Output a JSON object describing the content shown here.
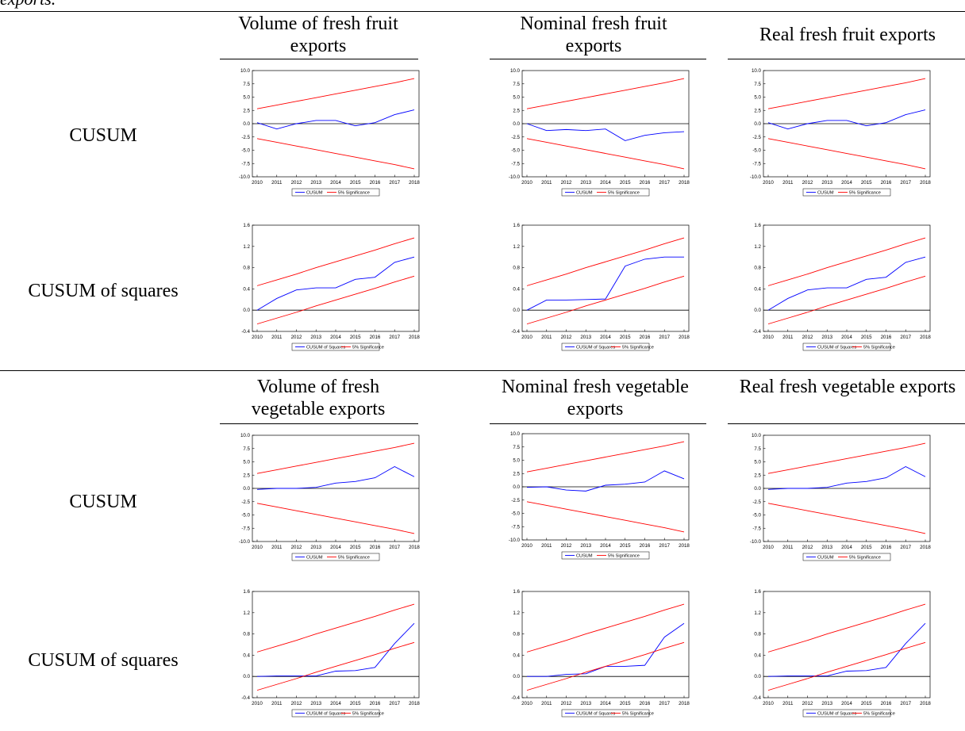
{
  "caption_tail": "exports.",
  "sections": [
    {
      "headers": [
        "Volume of fresh fruit exports",
        "Nominal fresh fruit exports",
        "Real fresh fruit exports"
      ],
      "row_labels": [
        "CUSUM",
        "CUSUM of squares"
      ]
    },
    {
      "headers": [
        "Volume of fresh vegetable exports",
        "Nominal fresh vegetable exports",
        "Real fresh vegetable exports"
      ],
      "row_labels": [
        "CUSUM",
        "CUSUM of squares"
      ]
    }
  ],
  "colors": {
    "statistic": "#0000ff",
    "bounds": "#ff0000",
    "axis": "#000000"
  },
  "chart_data": [
    {
      "id": "s0r0c0",
      "type": "line",
      "panel": "Volume of fresh fruit exports / CUSUM",
      "x": [
        2010,
        2011,
        2012,
        2013,
        2014,
        2015,
        2016,
        2017,
        2018
      ],
      "ylim": [
        -10,
        10
      ],
      "yticks": [
        "10.0",
        "7.5",
        "5.0",
        "2.5",
        "0.0",
        "-2.5",
        "-5.0",
        "-7.5",
        "-10.0"
      ],
      "series": [
        {
          "name": "CUSUM",
          "values": [
            0.2,
            -1.0,
            0.0,
            0.6,
            0.6,
            -0.4,
            0.2,
            1.7,
            2.6
          ]
        },
        {
          "name": "5% Significance",
          "values": [
            2.8,
            3.5,
            4.2,
            4.9,
            5.6,
            6.3,
            7.0,
            7.7,
            8.5
          ]
        },
        {
          "name": "5% Significance",
          "values": [
            -2.8,
            -3.5,
            -4.2,
            -4.9,
            -5.6,
            -6.3,
            -7.0,
            -7.7,
            -8.5
          ]
        }
      ]
    },
    {
      "id": "s0r0c1",
      "type": "line",
      "panel": "Nominal fresh fruit exports / CUSUM",
      "x": [
        2010,
        2011,
        2012,
        2013,
        2014,
        2015,
        2016,
        2017,
        2018
      ],
      "ylim": [
        -10,
        10
      ],
      "yticks": [
        "10.0",
        "7.5",
        "5.0",
        "2.5",
        "0.0",
        "-2.5",
        "-5.0",
        "-7.5",
        "-10.0"
      ],
      "series": [
        {
          "name": "CUSUM",
          "values": [
            0.0,
            -1.3,
            -1.1,
            -1.3,
            -1.0,
            -3.2,
            -2.2,
            -1.7,
            -1.5
          ]
        },
        {
          "name": "5% Significance",
          "values": [
            2.8,
            3.5,
            4.2,
            4.9,
            5.6,
            6.3,
            7.0,
            7.7,
            8.5
          ]
        },
        {
          "name": "5% Significance",
          "values": [
            -2.8,
            -3.5,
            -4.2,
            -4.9,
            -5.6,
            -6.3,
            -7.0,
            -7.7,
            -8.5
          ]
        }
      ]
    },
    {
      "id": "s0r0c2",
      "type": "line",
      "panel": "Real fresh fruit exports / CUSUM",
      "x": [
        2010,
        2011,
        2012,
        2013,
        2014,
        2015,
        2016,
        2017,
        2018
      ],
      "ylim": [
        -10,
        10
      ],
      "yticks": [
        "10.0",
        "7.5",
        "5.0",
        "2.5",
        "0.0",
        "-2.5",
        "-5.0",
        "-7.5",
        "-10.0"
      ],
      "series": [
        {
          "name": "CUSUM",
          "values": [
            0.2,
            -1.0,
            0.0,
            0.6,
            0.6,
            -0.4,
            0.2,
            1.7,
            2.6
          ]
        },
        {
          "name": "5% Significance",
          "values": [
            2.8,
            3.5,
            4.2,
            4.9,
            5.6,
            6.3,
            7.0,
            7.7,
            8.5
          ]
        },
        {
          "name": "5% Significance",
          "values": [
            -2.8,
            -3.5,
            -4.2,
            -4.9,
            -5.6,
            -6.3,
            -7.0,
            -7.7,
            -8.5
          ]
        }
      ]
    },
    {
      "id": "s0r1c0",
      "type": "line",
      "panel": "Volume of fresh fruit exports / CUSUM of squares",
      "x": [
        2010,
        2011,
        2012,
        2013,
        2014,
        2015,
        2016,
        2017,
        2018
      ],
      "ylim": [
        -0.4,
        1.6
      ],
      "yticks": [
        "1.6",
        "1.2",
        "0.8",
        "0.4",
        "0.0",
        "-0.4"
      ],
      "series": [
        {
          "name": "CUSUM of Squares",
          "values": [
            0.0,
            0.22,
            0.38,
            0.42,
            0.42,
            0.58,
            0.62,
            0.9,
            1.0
          ]
        },
        {
          "name": "5% Significance",
          "values": [
            0.46,
            0.57,
            0.68,
            0.8,
            0.91,
            1.02,
            1.13,
            1.25,
            1.36
          ]
        },
        {
          "name": "5% Significance",
          "values": [
            -0.26,
            -0.15,
            -0.04,
            0.08,
            0.19,
            0.3,
            0.41,
            0.53,
            0.64
          ]
        }
      ]
    },
    {
      "id": "s0r1c1",
      "type": "line",
      "panel": "Nominal fresh fruit exports / CUSUM of squares",
      "x": [
        2010,
        2011,
        2012,
        2013,
        2014,
        2015,
        2016,
        2017,
        2018
      ],
      "ylim": [
        -0.4,
        1.6
      ],
      "yticks": [
        "1.6",
        "1.2",
        "0.8",
        "0.4",
        "0.0",
        "-0.4"
      ],
      "series": [
        {
          "name": "CUSUM of Squares",
          "values": [
            0.0,
            0.19,
            0.19,
            0.2,
            0.21,
            0.83,
            0.96,
            1.0,
            1.0
          ]
        },
        {
          "name": "5% Significance",
          "values": [
            0.46,
            0.57,
            0.68,
            0.8,
            0.91,
            1.02,
            1.13,
            1.25,
            1.36
          ]
        },
        {
          "name": "5% Significance",
          "values": [
            -0.26,
            -0.15,
            -0.04,
            0.08,
            0.19,
            0.3,
            0.41,
            0.53,
            0.64
          ]
        }
      ]
    },
    {
      "id": "s0r1c2",
      "type": "line",
      "panel": "Real fresh fruit exports / CUSUM of squares",
      "x": [
        2010,
        2011,
        2012,
        2013,
        2014,
        2015,
        2016,
        2017,
        2018
      ],
      "ylim": [
        -0.4,
        1.6
      ],
      "yticks": [
        "1.6",
        "1.2",
        "0.8",
        "0.4",
        "0.0",
        "-0.4"
      ],
      "series": [
        {
          "name": "CUSUM of Squares",
          "values": [
            0.0,
            0.22,
            0.38,
            0.42,
            0.42,
            0.58,
            0.62,
            0.9,
            1.0
          ]
        },
        {
          "name": "5% Significance",
          "values": [
            0.46,
            0.57,
            0.68,
            0.8,
            0.91,
            1.02,
            1.13,
            1.25,
            1.36
          ]
        },
        {
          "name": "5% Significance",
          "values": [
            -0.26,
            -0.15,
            -0.04,
            0.08,
            0.19,
            0.3,
            0.41,
            0.53,
            0.64
          ]
        }
      ]
    },
    {
      "id": "s1r0c0",
      "type": "line",
      "panel": "Volume of fresh vegetable exports / CUSUM",
      "x": [
        2010,
        2011,
        2012,
        2013,
        2014,
        2015,
        2016,
        2017,
        2018
      ],
      "ylim": [
        -10,
        10
      ],
      "yticks": [
        "10.0",
        "7.5",
        "5.0",
        "2.5",
        "0.0",
        "-2.5",
        "-5.0",
        "-7.5",
        "-10.0"
      ],
      "series": [
        {
          "name": "CUSUM",
          "values": [
            -0.2,
            0.0,
            0.0,
            0.2,
            1.0,
            1.3,
            2.0,
            4.1,
            2.2
          ]
        },
        {
          "name": "5% Significance",
          "values": [
            2.8,
            3.5,
            4.2,
            4.9,
            5.6,
            6.3,
            7.0,
            7.7,
            8.5
          ]
        },
        {
          "name": "5% Significance",
          "values": [
            -2.8,
            -3.5,
            -4.2,
            -4.9,
            -5.6,
            -6.3,
            -7.0,
            -7.7,
            -8.5
          ]
        }
      ]
    },
    {
      "id": "s1r0c1",
      "type": "line",
      "panel": "Nominal fresh vegetable exports / CUSUM",
      "x": [
        2010,
        2011,
        2012,
        2013,
        2014,
        2015,
        2016,
        2017,
        2018
      ],
      "ylim": [
        -10,
        10
      ],
      "yticks": [
        "10.0",
        "7.5",
        "5.0",
        "2.5",
        "0.0",
        "-2.5",
        "-5.0",
        "-7.5",
        "-10.0"
      ],
      "series": [
        {
          "name": "CUSUM",
          "values": [
            -0.1,
            0.0,
            -0.6,
            -0.8,
            0.3,
            0.5,
            0.9,
            3.0,
            1.5
          ]
        },
        {
          "name": "5% Significance",
          "values": [
            2.8,
            3.5,
            4.2,
            4.9,
            5.6,
            6.3,
            7.0,
            7.7,
            8.5
          ]
        },
        {
          "name": "5% Significance",
          "values": [
            -2.8,
            -3.5,
            -4.2,
            -4.9,
            -5.6,
            -6.3,
            -7.0,
            -7.7,
            -8.5
          ]
        }
      ]
    },
    {
      "id": "s1r0c2",
      "type": "line",
      "panel": "Real fresh vegetable exports / CUSUM",
      "x": [
        2010,
        2011,
        2012,
        2013,
        2014,
        2015,
        2016,
        2017,
        2018
      ],
      "ylim": [
        -10,
        10
      ],
      "yticks": [
        "10.0",
        "7.5",
        "5.0",
        "2.5",
        "0.0",
        "-2.5",
        "-5.0",
        "-7.5",
        "-10.0"
      ],
      "series": [
        {
          "name": "CUSUM",
          "values": [
            -0.2,
            0.0,
            0.0,
            0.2,
            1.0,
            1.3,
            2.0,
            4.1,
            2.2
          ]
        },
        {
          "name": "5% Significance",
          "values": [
            2.8,
            3.5,
            4.2,
            4.9,
            5.6,
            6.3,
            7.0,
            7.7,
            8.5
          ]
        },
        {
          "name": "5% Significance",
          "values": [
            -2.8,
            -3.5,
            -4.2,
            -4.9,
            -5.6,
            -6.3,
            -7.0,
            -7.7,
            -8.5
          ]
        }
      ]
    },
    {
      "id": "s1r1c0",
      "type": "line",
      "panel": "Volume of fresh vegetable exports / CUSUM of squares",
      "x": [
        2010,
        2011,
        2012,
        2013,
        2014,
        2015,
        2016,
        2017,
        2018
      ],
      "ylim": [
        -0.4,
        1.6
      ],
      "yticks": [
        "1.6",
        "1.2",
        "0.8",
        "0.4",
        "0.0",
        "-0.4"
      ],
      "series": [
        {
          "name": "CUSUM of Squares",
          "values": [
            0.0,
            0.01,
            0.01,
            0.01,
            0.1,
            0.11,
            0.17,
            0.62,
            1.0
          ]
        },
        {
          "name": "5% Significance",
          "values": [
            0.46,
            0.57,
            0.68,
            0.8,
            0.91,
            1.02,
            1.13,
            1.25,
            1.36
          ]
        },
        {
          "name": "5% Significance",
          "values": [
            -0.26,
            -0.15,
            -0.04,
            0.08,
            0.19,
            0.3,
            0.41,
            0.53,
            0.64
          ]
        }
      ]
    },
    {
      "id": "s1r1c1",
      "type": "line",
      "panel": "Nominal fresh vegetable exports / CUSUM of squares",
      "x": [
        2010,
        2011,
        2012,
        2013,
        2014,
        2015,
        2016,
        2017,
        2018
      ],
      "ylim": [
        -0.4,
        1.6
      ],
      "yticks": [
        "1.6",
        "1.2",
        "0.8",
        "0.4",
        "0.0",
        "-0.4"
      ],
      "series": [
        {
          "name": "CUSUM of Squares",
          "values": [
            0.0,
            0.0,
            0.04,
            0.05,
            0.19,
            0.19,
            0.21,
            0.74,
            1.0
          ]
        },
        {
          "name": "5% Significance",
          "values": [
            0.46,
            0.57,
            0.68,
            0.8,
            0.91,
            1.02,
            1.13,
            1.25,
            1.36
          ]
        },
        {
          "name": "5% Significance",
          "values": [
            -0.26,
            -0.15,
            -0.04,
            0.08,
            0.19,
            0.3,
            0.41,
            0.53,
            0.64
          ]
        }
      ]
    },
    {
      "id": "s1r1c2",
      "type": "line",
      "panel": "Real fresh vegetable exports / CUSUM of squares",
      "x": [
        2010,
        2011,
        2012,
        2013,
        2014,
        2015,
        2016,
        2017,
        2018
      ],
      "ylim": [
        -0.4,
        1.6
      ],
      "yticks": [
        "1.6",
        "1.2",
        "0.8",
        "0.4",
        "0.0",
        "-0.4"
      ],
      "series": [
        {
          "name": "CUSUM of Squares",
          "values": [
            0.0,
            0.01,
            0.01,
            0.01,
            0.1,
            0.11,
            0.17,
            0.62,
            1.0
          ]
        },
        {
          "name": "5% Significance",
          "values": [
            0.46,
            0.57,
            0.68,
            0.8,
            0.91,
            1.02,
            1.13,
            1.25,
            1.36
          ]
        },
        {
          "name": "5% Significance",
          "values": [
            -0.26,
            -0.15,
            -0.04,
            0.08,
            0.19,
            0.3,
            0.41,
            0.53,
            0.64
          ]
        }
      ]
    }
  ]
}
